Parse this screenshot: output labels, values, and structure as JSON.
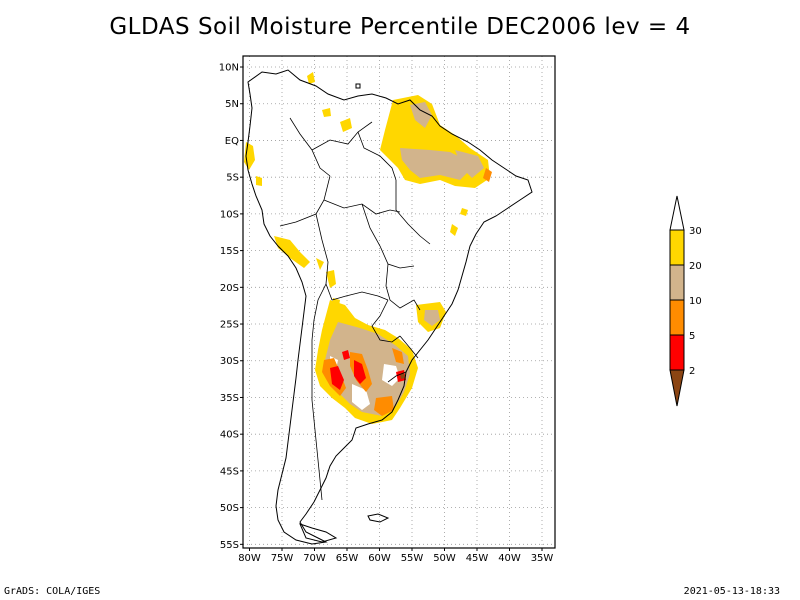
{
  "title": "GLDAS Soil Moisture Percentile DEC2006 lev = 4",
  "map": {
    "lat_labels": [
      "10N",
      "5N",
      "EQ",
      "5S",
      "10S",
      "15S",
      "20S",
      "25S",
      "30S",
      "35S",
      "40S",
      "45S",
      "50S",
      "55S"
    ],
    "lon_labels": [
      "80W",
      "75W",
      "70W",
      "65W",
      "60W",
      "55W",
      "50W",
      "45W",
      "40W",
      "35W"
    ],
    "lat_values": [
      10,
      5,
      0,
      -5,
      -10,
      -15,
      -20,
      -25,
      -30,
      -35,
      -40,
      -45,
      -50,
      -55
    ],
    "lon_values": [
      -80,
      -75,
      -70,
      -65,
      -60,
      -55,
      -50,
      -45,
      -40,
      -35
    ],
    "lat_range": [
      -55.5,
      11.5
    ],
    "lon_range": [
      -81,
      -33
    ]
  },
  "legend": {
    "labels": [
      "30",
      "20",
      "10",
      "5",
      "2"
    ],
    "colors": {
      "gt30": "#ffffff",
      "c20_30": "#ffd700",
      "c10_20": "#d2b48c",
      "c5_10": "#ff8c00",
      "c2_5": "#ff0000",
      "lt2": "#8b4513"
    }
  },
  "footer": {
    "left": "GrADS: COLA/IGES",
    "right": "2021-05-13-18:33"
  }
}
